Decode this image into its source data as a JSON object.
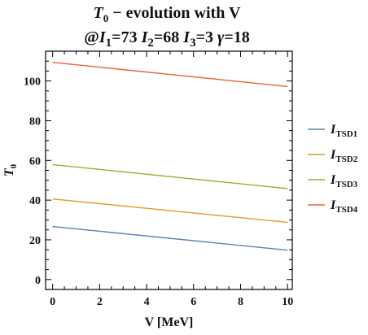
{
  "chart_data": {
    "type": "line",
    "title_line1_main": "T",
    "title_line1_sub": "0",
    "title_line1_rest": " − evolution with V",
    "title_line2": "@𝐼₁=73 𝐼₂=68 𝐼₃=3 γ=18",
    "title_line2_parts": [
      {
        "t": "@",
        "italic": false
      },
      {
        "t": "I",
        "italic": true
      },
      {
        "t": "1",
        "italic": false,
        "sub": true
      },
      {
        "t": "=73 ",
        "italic": false
      },
      {
        "t": "I",
        "italic": true
      },
      {
        "t": "2",
        "italic": false,
        "sub": true
      },
      {
        "t": "=68 ",
        "italic": false
      },
      {
        "t": "I",
        "italic": true
      },
      {
        "t": "3",
        "italic": false,
        "sub": true
      },
      {
        "t": "=3 ",
        "italic": false
      },
      {
        "t": "γ",
        "italic": true
      },
      {
        "t": "=18",
        "italic": false
      }
    ],
    "xlabel": "V [MeV]",
    "ylabel_main": "T",
    "ylabel_sub": "0",
    "xlim": [
      -0.3,
      10.2
    ],
    "ylim": [
      -5,
      115
    ],
    "x_ticks": [
      0,
      2,
      4,
      6,
      8,
      10
    ],
    "y_ticks": [
      0,
      20,
      40,
      60,
      80,
      100
    ],
    "grid": false,
    "legend_position": "right",
    "x": [
      0,
      10
    ],
    "series": [
      {
        "name_main": "I",
        "name_sub": "TSD1",
        "color": "#5e81b5",
        "values": [
          26.7,
          14.8
        ]
      },
      {
        "name_main": "I",
        "name_sub": "TSD2",
        "color": "#e19c24",
        "values": [
          40.6,
          28.8
        ]
      },
      {
        "name_main": "I",
        "name_sub": "TSD3",
        "color": "#8fb032",
        "values": [
          57.9,
          45.8
        ]
      },
      {
        "name_main": "I",
        "name_sub": "TSD4",
        "color": "#eb6235",
        "values": [
          109.4,
          97.2
        ]
      }
    ]
  }
}
